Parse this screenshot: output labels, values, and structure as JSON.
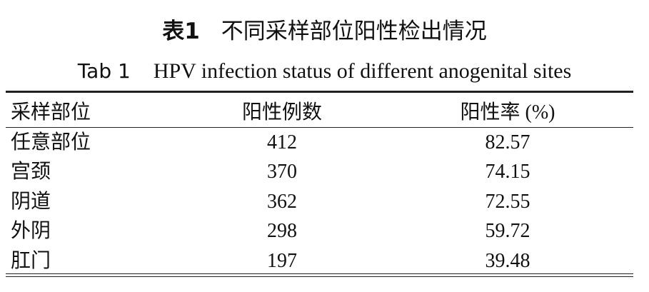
{
  "caption": {
    "label_cn": "表1",
    "title_cn": "不同采样部位阳性检出情况",
    "label_en": "Tab 1",
    "title_en": "HPV infection status of different anogenital sites"
  },
  "table": {
    "header": [
      "采样部位",
      "阳性例数",
      "阳性率 (%)"
    ],
    "rows": [
      [
        "任意部位",
        412,
        82.57
      ],
      [
        "宫颈",
        370,
        74.15
      ],
      [
        "阴道",
        362,
        72.55
      ],
      [
        "外阴",
        298,
        59.72
      ],
      [
        "肛门",
        197,
        39.48
      ]
    ]
  }
}
